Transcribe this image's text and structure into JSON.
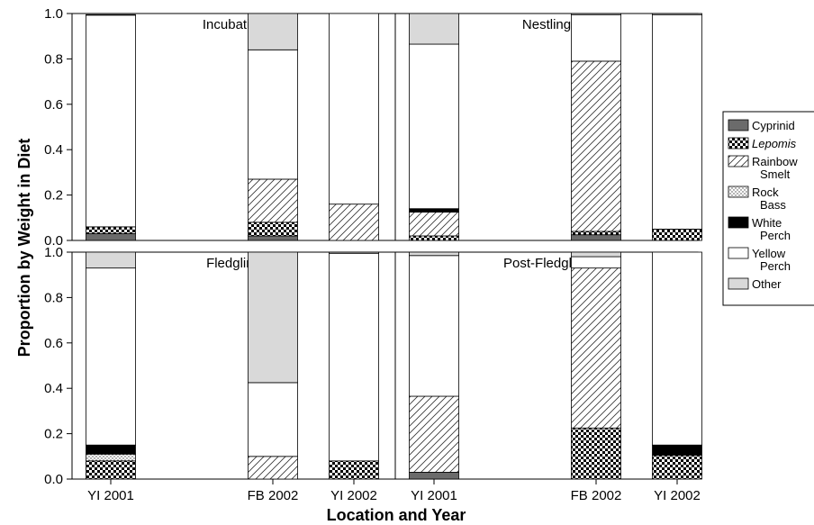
{
  "chart_data": {
    "type": "bar",
    "stacked": true,
    "ylabel": "Proportion by Weight in Diet",
    "xlabel": "Location and Year",
    "ylim": [
      0,
      1.0
    ],
    "yticks": [
      "0.0",
      "0.2",
      "0.4",
      "0.6",
      "0.8",
      "1.0"
    ],
    "categories": [
      "YI 2001",
      "FB 2002",
      "YI 2002"
    ],
    "components": [
      {
        "name": "Cyprinid",
        "legend_lines": [
          "Cyprinid"
        ],
        "italic": false,
        "fill": "#6b6b6b",
        "pattern": "solid"
      },
      {
        "name": "Lepomis",
        "legend_lines": [
          "Lepomis"
        ],
        "italic": true,
        "fill": "#ffffff",
        "pattern": "checker"
      },
      {
        "name": "Rainbow Smelt",
        "legend_lines": [
          "Rainbow",
          "Smelt"
        ],
        "italic": false,
        "fill": "#ffffff",
        "pattern": "hatch"
      },
      {
        "name": "Rock Bass",
        "legend_lines": [
          "Rock",
          "Bass"
        ],
        "italic": false,
        "fill": "#ffffff",
        "pattern": "dots"
      },
      {
        "name": "White Perch",
        "legend_lines": [
          "White",
          "Perch"
        ],
        "italic": false,
        "fill": "#000000",
        "pattern": "solid"
      },
      {
        "name": "Yellow Perch",
        "legend_lines": [
          "Yellow",
          "Perch"
        ],
        "italic": false,
        "fill": "#ffffff",
        "pattern": "solid"
      },
      {
        "name": "Other",
        "legend_lines": [
          "Other"
        ],
        "italic": false,
        "fill": "#d9d9d9",
        "pattern": "solid"
      }
    ],
    "legend_position": "right",
    "panels": [
      {
        "title": "Incubation",
        "bars": [
          {
            "category": "YI 2001",
            "values": {
              "Cyprinid": 0.03,
              "Lepomis": 0.03,
              "Rainbow Smelt": 0.0,
              "Rock Bass": 0.0,
              "White Perch": 0.0,
              "Yellow Perch": 0.933,
              "Other": 0.002
            }
          },
          {
            "category": "FB 2002",
            "values": {
              "Cyprinid": 0.02,
              "Lepomis": 0.06,
              "Rainbow Smelt": 0.19,
              "Rock Bass": 0.0,
              "White Perch": 0.0,
              "Yellow Perch": 0.57,
              "Other": 0.16
            }
          },
          {
            "category": "YI 2002",
            "values": {
              "Cyprinid": 0.0,
              "Lepomis": 0.0,
              "Rainbow Smelt": 0.16,
              "Rock Bass": 0.0,
              "White Perch": 0.0,
              "Yellow Perch": 0.84,
              "Other": 0.0
            }
          }
        ]
      },
      {
        "title": "Nestling",
        "bars": [
          {
            "category": "YI 2001",
            "values": {
              "Cyprinid": 0.0,
              "Lepomis": 0.02,
              "Rainbow Smelt": 0.105,
              "Rock Bass": 0.0,
              "White Perch": 0.015,
              "Yellow Perch": 0.725,
              "Other": 0.135
            }
          },
          {
            "category": "FB 2002",
            "values": {
              "Cyprinid": 0.025,
              "Lepomis": 0.015,
              "Rainbow Smelt": 0.75,
              "Rock Bass": 0.0,
              "White Perch": 0.0,
              "Yellow Perch": 0.205,
              "Other": 0.005
            }
          },
          {
            "category": "YI 2002",
            "values": {
              "Cyprinid": 0.0,
              "Lepomis": 0.05,
              "Rainbow Smelt": 0.0,
              "Rock Bass": 0.0,
              "White Perch": 0.0,
              "Yellow Perch": 0.945,
              "Other": 0.005
            }
          }
        ]
      },
      {
        "title": "Fledgling",
        "bars": [
          {
            "category": "YI 2001",
            "values": {
              "Cyprinid": 0.0,
              "Lepomis": 0.08,
              "Rainbow Smelt": 0.0,
              "Rock Bass": 0.03,
              "White Perch": 0.04,
              "Yellow Perch": 0.78,
              "Other": 0.07
            }
          },
          {
            "category": "FB 2002",
            "values": {
              "Cyprinid": 0.0,
              "Lepomis": 0.0,
              "Rainbow Smelt": 0.1,
              "Rock Bass": 0.0,
              "White Perch": 0.0,
              "Yellow Perch": 0.325,
              "Other": 0.575
            }
          },
          {
            "category": "YI 2002",
            "values": {
              "Cyprinid": 0.0,
              "Lepomis": 0.08,
              "Rainbow Smelt": 0.0,
              "Rock Bass": 0.0,
              "White Perch": 0.0,
              "Yellow Perch": 0.915,
              "Other": 0.005
            }
          }
        ]
      },
      {
        "title": "Post-Fledgling",
        "bars": [
          {
            "category": "YI 2001",
            "values": {
              "Cyprinid": 0.03,
              "Lepomis": 0.0,
              "Rainbow Smelt": 0.335,
              "Rock Bass": 0.0,
              "White Perch": 0.0,
              "Yellow Perch": 0.62,
              "Other": 0.015
            }
          },
          {
            "category": "FB 2002",
            "values": {
              "Cyprinid": 0.0,
              "Lepomis": 0.225,
              "Rainbow Smelt": 0.705,
              "Rock Bass": 0.0,
              "White Perch": 0.0,
              "Yellow Perch": 0.05,
              "Other": 0.02
            }
          },
          {
            "category": "YI 2002",
            "values": {
              "Cyprinid": 0.0,
              "Lepomis": 0.105,
              "Rainbow Smelt": 0.0,
              "Rock Bass": 0.0,
              "White Perch": 0.045,
              "Yellow Perch": 0.85,
              "Other": 0.0
            }
          }
        ]
      }
    ]
  }
}
